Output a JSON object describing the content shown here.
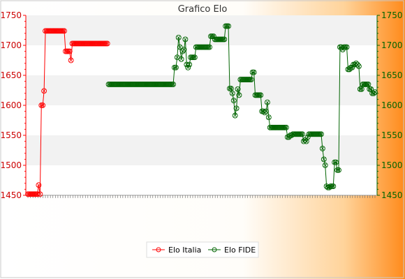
{
  "chart_data": {
    "type": "line",
    "title": "Grafico Elo",
    "xlabel": "",
    "ylabel": "",
    "ylim": [
      1450,
      1750
    ],
    "y_ticks": [
      1450,
      1500,
      1550,
      1600,
      1650,
      1700,
      1750
    ],
    "x_tick_count": 140,
    "x_tick_labels_legible": false,
    "grid": "horizontal bands",
    "legend_position": "bottom",
    "series": [
      {
        "name": "Elo Italia",
        "color": "#ff0000",
        "axis": "left",
        "values": [
          1452,
          1452,
          1452,
          1452,
          1452,
          1452,
          1452,
          1452,
          1467,
          1452,
          1600,
          1600,
          1624,
          1724,
          1724,
          1724,
          1724,
          1724,
          1724,
          1724,
          1724,
          1724,
          1724,
          1724,
          1724,
          1724,
          1724,
          1724,
          1690,
          1690,
          1690,
          1690,
          1675,
          1703,
          1703,
          1703,
          1703,
          1703,
          1703,
          1703,
          1703,
          1703,
          1703,
          1703,
          1703,
          1703,
          1703,
          1703,
          1703,
          1703,
          1703,
          1703,
          1703,
          1703,
          1703,
          1703,
          1703,
          1703,
          1703,
          1703
        ]
      },
      {
        "name": "Elo FIDE",
        "color": "#006400",
        "axis": "right",
        "values": [
          null,
          null,
          null,
          null,
          null,
          null,
          null,
          null,
          null,
          null,
          null,
          null,
          null,
          null,
          null,
          null,
          null,
          null,
          null,
          null,
          null,
          null,
          null,
          null,
          null,
          null,
          null,
          null,
          null,
          null,
          null,
          null,
          null,
          null,
          null,
          null,
          null,
          null,
          null,
          null,
          null,
          null,
          null,
          null,
          null,
          null,
          null,
          null,
          null,
          null,
          null,
          null,
          null,
          null,
          null,
          null,
          null,
          null,
          null,
          null,
          1635,
          1635,
          1635,
          1635,
          1635,
          1635,
          1635,
          1635,
          1635,
          1635,
          1635,
          1635,
          1635,
          1635,
          1635,
          1635,
          1635,
          1635,
          1635,
          1635,
          1635,
          1635,
          1635,
          1635,
          1635,
          1635,
          1635,
          1635,
          1635,
          1635,
          1635,
          1635,
          1635,
          1635,
          1635,
          1635,
          1635,
          1635,
          1635,
          1635,
          1635,
          1635,
          1635,
          1635,
          1635,
          1635,
          1635,
          1635,
          1635,
          1663,
          1663,
          1680,
          1713,
          1697,
          1677,
          1690,
          1693,
          1710,
          1668,
          1663,
          1668,
          1680,
          1680,
          1680,
          1680,
          1697,
          1697,
          1697,
          1697,
          1697,
          1697,
          1697,
          1697,
          1697,
          1697,
          1697,
          1715,
          1715,
          1715,
          1710,
          1710,
          1710,
          1710,
          1710,
          1710,
          1710,
          1710,
          1732,
          1732,
          1732,
          1628,
          1628,
          1620,
          1608,
          1583,
          1595,
          1627,
          1617,
          1643,
          1643,
          1643,
          1643,
          1643,
          1643,
          1643,
          1643,
          1643,
          1655,
          1655,
          1617,
          1617,
          1617,
          1617,
          1617,
          1590,
          1590,
          1588,
          1590,
          1605,
          1580,
          1563,
          1563,
          1563,
          1563,
          1563,
          1563,
          1563,
          1563,
          1563,
          1563,
          1563,
          1563,
          1563,
          1547,
          1547,
          1550,
          1550,
          1552,
          1552,
          1552,
          1552,
          1552,
          1552,
          1552,
          1552,
          1540,
          1542,
          1540,
          1547,
          1552,
          1552,
          1552,
          1552,
          1552,
          1552,
          1552,
          1552,
          1552,
          1552,
          1528,
          1510,
          1500,
          1465,
          1463,
          1463,
          1465,
          1465,
          1465,
          1505,
          1505,
          1492,
          1492,
          1697,
          1697,
          1693,
          1697,
          1697,
          1697,
          1660,
          1660,
          1663,
          1663,
          1668,
          1668,
          1670,
          1668,
          1665,
          1627,
          1627,
          1635,
          1635,
          1635,
          1635,
          1635,
          1627,
          1627,
          1620,
          1620,
          1622
        ]
      }
    ]
  }
}
